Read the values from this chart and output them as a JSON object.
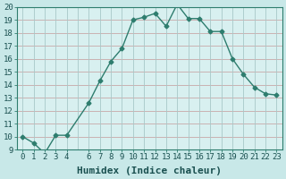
{
  "x": [
    0,
    1,
    2,
    3,
    4,
    6,
    7,
    8,
    9,
    10,
    11,
    12,
    13,
    14,
    15,
    16,
    17,
    18,
    19,
    20,
    21,
    22,
    23
  ],
  "y": [
    10,
    9.5,
    8.7,
    10.1,
    10.1,
    12.6,
    14.3,
    15.8,
    16.8,
    19.0,
    19.2,
    19.5,
    18.5,
    20.2,
    19.1,
    19.1,
    18.1,
    18.1,
    16.0,
    14.8,
    13.8,
    13.3,
    13.2
  ],
  "line_color": "#2e7d6e",
  "marker": "D",
  "marker_size": 2.5,
  "bg_color": "#c8e8e8",
  "plot_bg_color": "#d8f0f0",
  "grid_color_major": "#c8a0a0",
  "grid_color_minor": "#b8d8d8",
  "xlabel": "Humidex (Indice chaleur)",
  "xlabel_fontsize": 8,
  "ylim": [
    9,
    20
  ],
  "xlim": [
    -0.5,
    23.5
  ],
  "yticks": [
    9,
    10,
    11,
    12,
    13,
    14,
    15,
    16,
    17,
    18,
    19,
    20
  ],
  "xtick_labels": [
    "0",
    "1",
    "2",
    "3",
    "4",
    "6",
    "7",
    "8",
    "9",
    "10",
    "11",
    "12",
    "13",
    "14",
    "15",
    "16",
    "17",
    "18",
    "19",
    "20",
    "21",
    "22",
    "23"
  ],
  "xtick_positions": [
    0,
    1,
    2,
    3,
    4,
    6,
    7,
    8,
    9,
    10,
    11,
    12,
    13,
    14,
    15,
    16,
    17,
    18,
    19,
    20,
    21,
    22,
    23
  ],
  "tick_fontsize": 6.5,
  "line_width": 1.0
}
